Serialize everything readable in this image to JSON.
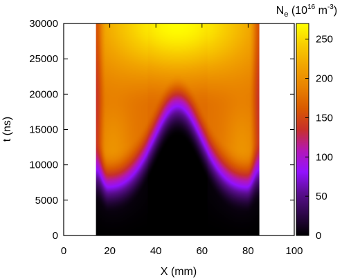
{
  "chart_data": {
    "type": "heatmap",
    "title": "",
    "xlabel": "X (mm)",
    "ylabel": "t (ns)",
    "xlim": [
      0,
      100
    ],
    "ylim": [
      0,
      30000
    ],
    "x_ticks": [
      0,
      20,
      40,
      60,
      80,
      100
    ],
    "y_ticks": [
      0,
      5000,
      10000,
      15000,
      20000,
      25000,
      30000
    ],
    "data_x_range": [
      14,
      85
    ],
    "data_y_range": [
      0,
      30000
    ],
    "colorbar": {
      "label": "N",
      "label_subscript": "e",
      "label_units_open": " (10",
      "label_units_exp": "16",
      "label_units_mid": " m",
      "label_units_exp2": "-3",
      "label_units_close": ")",
      "range": [
        0,
        270
      ],
      "ticks": [
        0,
        50,
        100,
        150,
        200,
        250
      ],
      "colormap": "gnuplot-pm3d-default",
      "stops": [
        {
          "value": 0,
          "color": "#000000"
        },
        {
          "value": 54,
          "color": "#5a0e8f"
        },
        {
          "value": 81,
          "color": "#9311ff"
        },
        {
          "value": 108,
          "color": "#b317b6"
        },
        {
          "value": 135,
          "color": "#c7302a"
        },
        {
          "value": 162,
          "color": "#d95a00"
        },
        {
          "value": 189,
          "color": "#e88200"
        },
        {
          "value": 216,
          "color": "#f1a400"
        },
        {
          "value": 243,
          "color": "#f8cd00"
        },
        {
          "value": 270,
          "color": "#ffff00"
        }
      ]
    },
    "grid": false,
    "description_of_field": "Ne low near t=0 everywhere; two lobes near X≈22 and X≈78 mm reach ~150 by t≈10000 ns; central region (X≈50) stays low until ~15000 ns; above ~20000 ns the whole span is high, peaking ~270 at t=30000 ns around X≈50."
  }
}
